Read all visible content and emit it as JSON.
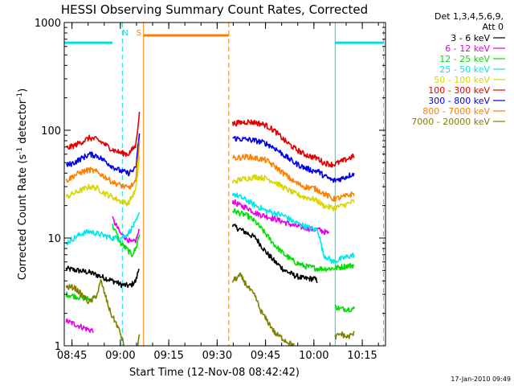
{
  "chart_data": {
    "type": "line",
    "title": "HESSI Observing Summary Count Rates, Corrected",
    "xlabel": "Start Time (12-Nov-08 08:42:42)",
    "ylabel_main": "Corrected Count Rate (s",
    "ylabel_sup1": "-1",
    "ylabel_mid": " detector",
    "ylabel_sup2": "-1",
    "ylabel_end": ")",
    "y_scale": "log",
    "ylim": [
      1,
      1000
    ],
    "xlim": [
      8.71,
      10.37
    ],
    "yticks": [
      {
        "v": 1,
        "label": "1"
      },
      {
        "v": 10,
        "label": "10"
      },
      {
        "v": 100,
        "label": "100"
      },
      {
        "v": 1000,
        "label": "1000"
      }
    ],
    "xticks": [
      {
        "v": 8.75,
        "label": "08:45"
      },
      {
        "v": 9.0,
        "label": "09:00"
      },
      {
        "v": 9.25,
        "label": "09:15"
      },
      {
        "v": 9.5,
        "label": "09:30"
      },
      {
        "v": 9.75,
        "label": "09:45"
      },
      {
        "v": 10.0,
        "label": "10:00"
      },
      {
        "v": 10.25,
        "label": "10:15"
      }
    ],
    "legend_header": [
      "Det 1,3,4,5,6,9,",
      "Att 0"
    ],
    "legend_placement": "right",
    "series": [
      {
        "name": "3 - 6 keV",
        "color": "#000000",
        "segments": [
          [
            [
              8.72,
              5.2
            ],
            [
              8.78,
              5.0
            ],
            [
              8.84,
              4.8
            ],
            [
              8.9,
              4.4
            ],
            [
              8.96,
              4.0
            ],
            [
              8.98,
              3.9
            ],
            [
              9.0,
              3.7
            ],
            [
              9.05,
              3.6
            ],
            [
              9.08,
              4.0
            ],
            [
              9.1,
              5.6
            ]
          ],
          [
            [
              9.58,
              13
            ],
            [
              9.62,
              12
            ],
            [
              9.66,
              11
            ],
            [
              9.7,
              10
            ],
            [
              9.75,
              7.5
            ],
            [
              9.8,
              6
            ],
            [
              9.85,
              5.0
            ],
            [
              9.9,
              4.5
            ],
            [
              9.95,
              4.2
            ],
            [
              10.0,
              4.2
            ],
            [
              10.02,
              4.0
            ]
          ]
        ]
      },
      {
        "name": "6 - 12 keV",
        "color": "#e800e8",
        "segments": [
          [
            [
              8.72,
              1.7
            ],
            [
              8.76,
              1.6
            ],
            [
              8.8,
              1.5
            ],
            [
              8.84,
              1.4
            ],
            [
              8.86,
              1.4
            ]
          ],
          [
            [
              8.96,
              15
            ],
            [
              8.98,
              13
            ],
            [
              9.0,
              11
            ],
            [
              9.03,
              10
            ],
            [
              9.06,
              9
            ],
            [
              9.08,
              9.5
            ],
            [
              9.1,
              12
            ]
          ],
          [
            [
              9.58,
              22
            ],
            [
              9.62,
              20
            ],
            [
              9.66,
              19
            ],
            [
              9.7,
              17
            ],
            [
              9.75,
              16
            ],
            [
              9.8,
              15
            ],
            [
              9.85,
              14
            ],
            [
              9.9,
              13
            ],
            [
              9.95,
              12.5
            ],
            [
              10.0,
              12
            ],
            [
              10.02,
              12
            ],
            [
              10.05,
              11.5
            ],
            [
              10.08,
              11
            ]
          ]
        ]
      },
      {
        "name": "12 - 25 keV",
        "color": "#00e000",
        "segments": [
          [
            [
              8.72,
              3.0
            ],
            [
              8.76,
              2.9
            ],
            [
              8.8,
              2.8
            ],
            [
              8.84,
              2.7
            ],
            [
              8.86,
              2.7
            ]
          ],
          [
            [
              8.96,
              13
            ],
            [
              8.98,
              11
            ],
            [
              9.0,
              9
            ],
            [
              9.03,
              8
            ],
            [
              9.06,
              7
            ],
            [
              9.08,
              8
            ],
            [
              9.1,
              11
            ]
          ],
          [
            [
              9.58,
              18
            ],
            [
              9.62,
              17
            ],
            [
              9.66,
              16
            ],
            [
              9.7,
              14
            ],
            [
              9.75,
              11
            ],
            [
              9.8,
              8.5
            ],
            [
              9.85,
              7
            ],
            [
              9.9,
              6
            ],
            [
              9.95,
              5.5
            ],
            [
              10.0,
              5.3
            ],
            [
              10.02,
              5.2
            ],
            [
              10.08,
              5.2
            ],
            [
              10.12,
              5.3
            ],
            [
              10.17,
              5.5
            ],
            [
              10.21,
              5.6
            ]
          ],
          [
            [
              10.11,
              2.3
            ],
            [
              10.14,
              2.2
            ],
            [
              10.17,
              2.2
            ],
            [
              10.21,
              2.2
            ]
          ]
        ]
      },
      {
        "name": "25 - 50 keV",
        "color": "#00e8e8",
        "segments": [
          [
            [
              8.72,
              9.0
            ],
            [
              8.76,
              10
            ],
            [
              8.8,
              11
            ],
            [
              8.84,
              11.5
            ],
            [
              8.88,
              11
            ],
            [
              8.92,
              10.5
            ],
            [
              8.96,
              10
            ],
            [
              9.0,
              10
            ],
            [
              9.04,
              11
            ],
            [
              9.08,
              14
            ],
            [
              9.1,
              17
            ]
          ],
          [
            [
              9.58,
              26
            ],
            [
              9.62,
              24
            ],
            [
              9.66,
              22
            ],
            [
              9.7,
              20
            ],
            [
              9.75,
              18
            ],
            [
              9.8,
              17
            ],
            [
              9.85,
              16
            ],
            [
              9.9,
              14
            ],
            [
              9.95,
              13
            ],
            [
              10.0,
              12
            ],
            [
              10.02,
              12
            ],
            [
              10.05,
              7
            ],
            [
              10.1,
              6
            ],
            [
              10.15,
              6.5
            ],
            [
              10.21,
              7
            ]
          ]
        ]
      },
      {
        "name": "50 - 100 keV",
        "color": "#d8d800",
        "segments": [
          [
            [
              8.72,
              24
            ],
            [
              8.76,
              26
            ],
            [
              8.8,
              28
            ],
            [
              8.84,
              30
            ],
            [
              8.88,
              29
            ],
            [
              8.92,
              26
            ],
            [
              8.96,
              24
            ],
            [
              9.0,
              22
            ],
            [
              9.04,
              21
            ],
            [
              9.08,
              28
            ],
            [
              9.1,
              60
            ]
          ],
          [
            [
              9.58,
              33
            ],
            [
              9.62,
              35
            ],
            [
              9.66,
              36
            ],
            [
              9.7,
              37
            ],
            [
              9.75,
              36
            ],
            [
              9.8,
              33
            ],
            [
              9.85,
              29
            ],
            [
              9.9,
              26
            ],
            [
              9.95,
              24
            ],
            [
              10.0,
              23
            ],
            [
              10.02,
              22
            ],
            [
              10.05,
              20
            ],
            [
              10.1,
              19
            ],
            [
              10.15,
              20
            ],
            [
              10.21,
              22
            ]
          ]
        ]
      },
      {
        "name": "100 - 300 keV",
        "color": "#e00000",
        "segments": [
          [
            [
              8.72,
              68
            ],
            [
              8.76,
              72
            ],
            [
              8.8,
              78
            ],
            [
              8.84,
              85
            ],
            [
              8.88,
              82
            ],
            [
              8.92,
              74
            ],
            [
              8.96,
              66
            ],
            [
              9.0,
              62
            ],
            [
              9.04,
              60
            ],
            [
              9.08,
              72
            ],
            [
              9.1,
              160
            ]
          ],
          [
            [
              9.58,
              115
            ],
            [
              9.62,
              118
            ],
            [
              9.66,
              120
            ],
            [
              9.7,
              118
            ],
            [
              9.75,
              112
            ],
            [
              9.8,
              98
            ],
            [
              9.85,
              80
            ],
            [
              9.9,
              68
            ],
            [
              9.95,
              60
            ],
            [
              10.0,
              56
            ],
            [
              10.02,
              55
            ],
            [
              10.05,
              50
            ],
            [
              10.1,
              48
            ],
            [
              10.15,
              52
            ],
            [
              10.21,
              58
            ]
          ]
        ]
      },
      {
        "name": "300 - 800 keV",
        "color": "#0000e8",
        "segments": [
          [
            [
              8.72,
              47
            ],
            [
              8.76,
              50
            ],
            [
              8.8,
              55
            ],
            [
              8.84,
              60
            ],
            [
              8.88,
              58
            ],
            [
              8.92,
              52
            ],
            [
              8.96,
              46
            ],
            [
              9.0,
              42
            ],
            [
              9.04,
              40
            ],
            [
              9.08,
              44
            ],
            [
              9.1,
              100
            ]
          ],
          [
            [
              9.58,
              85
            ],
            [
              9.62,
              83
            ],
            [
              9.66,
              82
            ],
            [
              9.7,
              80
            ],
            [
              9.75,
              76
            ],
            [
              9.8,
              68
            ],
            [
              9.85,
              58
            ],
            [
              9.9,
              50
            ],
            [
              9.95,
              45
            ],
            [
              10.0,
              42
            ],
            [
              10.02,
              42
            ],
            [
              10.05,
              38
            ],
            [
              10.1,
              34
            ],
            [
              10.15,
              36
            ],
            [
              10.21,
              40
            ]
          ]
        ]
      },
      {
        "name": "800 - 7000 keV",
        "color": "#ff7f00",
        "segments": [
          [
            [
              8.72,
              34
            ],
            [
              8.76,
              38
            ],
            [
              8.8,
              41
            ],
            [
              8.84,
              43
            ],
            [
              8.88,
              41
            ],
            [
              8.92,
              37
            ],
            [
              8.96,
              33
            ],
            [
              9.0,
              31
            ],
            [
              9.04,
              29
            ],
            [
              9.08,
              33
            ],
            [
              9.1,
              90
            ]
          ],
          [
            [
              9.58,
              55
            ],
            [
              9.62,
              56
            ],
            [
              9.66,
              57
            ],
            [
              9.7,
              55
            ],
            [
              9.75,
              53
            ],
            [
              9.8,
              46
            ],
            [
              9.85,
              39
            ],
            [
              9.9,
              33
            ],
            [
              9.95,
              30
            ],
            [
              10.0,
              29
            ],
            [
              10.02,
              28
            ],
            [
              10.05,
              26
            ],
            [
              10.1,
              23
            ],
            [
              10.15,
              24
            ],
            [
              10.21,
              26
            ]
          ]
        ]
      },
      {
        "name": "7000 - 20000 keV",
        "color": "#808000",
        "segments": [
          [
            [
              8.72,
              3.5
            ],
            [
              8.76,
              3.5
            ],
            [
              8.8,
              3.0
            ],
            [
              8.84,
              2.5
            ],
            [
              8.88,
              3.0
            ],
            [
              8.9,
              4.0
            ],
            [
              8.92,
              3.0
            ],
            [
              8.95,
              2.0
            ],
            [
              8.98,
              1.6
            ],
            [
              9.0,
              1.3
            ],
            [
              9.02,
              1.0
            ]
          ],
          [
            [
              9.09,
              1.0
            ],
            [
              9.1,
              1.3
            ]
          ],
          [
            [
              9.58,
              4.0
            ],
            [
              9.62,
              4.5
            ],
            [
              9.66,
              3.5
            ],
            [
              9.7,
              2.8
            ],
            [
              9.72,
              2.2
            ],
            [
              9.75,
              1.8
            ],
            [
              9.78,
              1.5
            ],
            [
              9.8,
              1.3
            ],
            [
              9.83,
              1.2
            ],
            [
              9.86,
              1.1
            ],
            [
              9.9,
              1.0
            ]
          ],
          [
            [
              10.11,
              1.2
            ],
            [
              10.14,
              1.3
            ],
            [
              10.17,
              1.2
            ],
            [
              10.21,
              1.3
            ]
          ]
        ]
      }
    ],
    "flags": {
      "night": {
        "label": "N",
        "color": "#00e0e0",
        "y": 650,
        "bars": [
          [
            8.71,
            8.96
          ],
          [
            10.11,
            10.36
          ]
        ],
        "solid_edges": [
          8.71,
          10.11
        ],
        "dashed_edges": [
          9.01,
          10.36
        ],
        "label_at": 9.025
      },
      "saa": {
        "label": "S",
        "color": "#ff7f00",
        "y": 760,
        "bars": [
          [
            9.12,
            9.56
          ]
        ],
        "solid_edges": [
          9.12
        ],
        "dashed_edges": [
          9.56
        ],
        "label_at": 9.095
      }
    },
    "timestamp": "17-Jan-2010 09:49"
  }
}
